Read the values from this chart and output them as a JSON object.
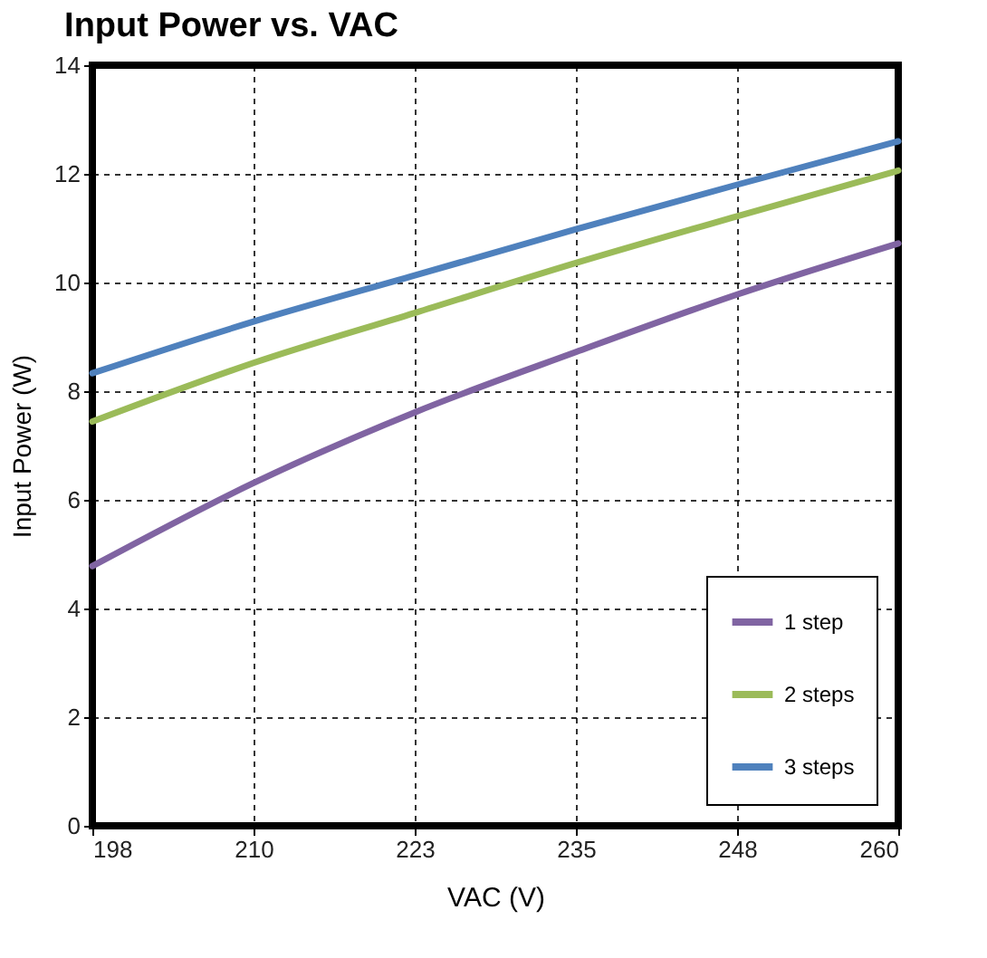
{
  "chart_data": {
    "type": "line",
    "title": "Input Power vs. VAC",
    "xlabel": "VAC (V)",
    "ylabel": "Input Power (W)",
    "x": [
      198,
      210.4,
      222.8,
      235.2,
      247.6,
      260
    ],
    "series": [
      {
        "name": "1 step",
        "color": "#8064a2",
        "values": [
          4.78,
          6.31,
          7.61,
          8.72,
          9.78,
          10.72
        ]
      },
      {
        "name": "2 steps",
        "color": "#9bbb59",
        "values": [
          7.44,
          8.52,
          9.44,
          10.36,
          11.22,
          12.06
        ]
      },
      {
        "name": "3 steps",
        "color": "#4f81bd",
        "values": [
          8.33,
          9.28,
          10.13,
          10.98,
          11.8,
          12.6
        ]
      }
    ],
    "xlim": [
      198,
      260
    ],
    "xticks": [
      198,
      {
        "value": 210.4,
        "label": "210"
      },
      {
        "value": 222.8,
        "label": "223"
      },
      {
        "value": 235.2,
        "label": "235"
      },
      {
        "value": 247.6,
        "label": "248"
      },
      260
    ],
    "ylim": [
      0,
      14
    ],
    "yticks": [
      0,
      2,
      4,
      6,
      8,
      10,
      12,
      14
    ],
    "grid": true,
    "legend": "bottom right",
    "line_style": "solid",
    "marker": "none"
  }
}
